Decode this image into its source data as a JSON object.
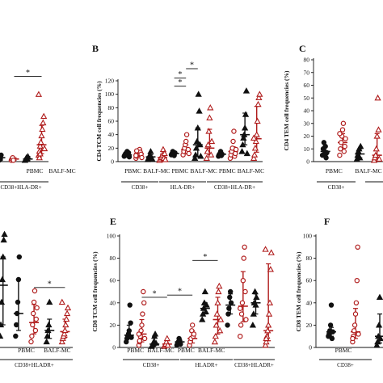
{
  "colors": {
    "black": "#111111",
    "red": "#b01c1c"
  },
  "chart_data": [
    {
      "id": "A",
      "letter": "",
      "type": "scatter",
      "ylabel": "",
      "ylim": [
        0,
        100
      ],
      "yticks": [],
      "sub_labels": [
        "",
        "PBMC",
        "BALF-MC"
      ],
      "group_labels": [
        "CD38+HLA-DR+"
      ],
      "columns": [
        {
          "color": "black",
          "marker": "circle",
          "filled": true,
          "values": [
            2,
            3,
            1,
            4,
            2,
            5
          ],
          "median": 3,
          "q1": 1,
          "q3": 5
        },
        {
          "color": "red",
          "marker": "circle",
          "filled": false,
          "values": [
            1,
            2,
            3,
            1
          ],
          "median": 2,
          "q1": 1,
          "q3": 3
        },
        {
          "color": "black",
          "marker": "triangle",
          "filled": true,
          "values": [
            1,
            2,
            3,
            2,
            4
          ],
          "median": 2,
          "q1": 1,
          "q3": 4
        },
        {
          "color": "red",
          "marker": "triangle",
          "filled": false,
          "values": [
            5,
            8,
            12,
            15,
            20,
            25,
            30,
            35,
            10,
            52,
            3,
            6
          ],
          "median": 13,
          "q1": 6,
          "q3": 28
        }
      ],
      "significance": [
        {
          "from": 1,
          "to": 3,
          "y": 66,
          "label": "*"
        }
      ]
    },
    {
      "id": "B",
      "letter": "B",
      "type": "scatter",
      "ylabel": "CD4 TCM cell frequencies (%)",
      "ylim": [
        0,
        120
      ],
      "yticks": [
        0,
        20,
        40,
        60,
        80,
        100,
        120
      ],
      "sub_labels": [
        "PBMC",
        "BALF-MC",
        "PBMC",
        "BALF-MC",
        "PBMC",
        "BALF-MC"
      ],
      "group_labels": [
        "CD38+",
        "HLA-DR+",
        "CD38+HLA-DR+"
      ],
      "columns": [
        {
          "color": "black",
          "marker": "circle",
          "filled": true,
          "values": [
            8,
            10,
            12,
            11,
            15,
            9,
            13,
            7
          ],
          "median": 10,
          "q1": 8,
          "q3": 13
        },
        {
          "color": "red",
          "marker": "circle",
          "filled": false,
          "values": [
            5,
            8,
            10,
            12,
            15,
            18,
            14,
            11,
            6,
            9,
            16
          ],
          "median": 12,
          "q1": 8,
          "q3": 15
        },
        {
          "color": "black",
          "marker": "triangle",
          "filled": true,
          "values": [
            3,
            5,
            8,
            10,
            15,
            6,
            4
          ],
          "median": 7,
          "q1": 4,
          "q3": 10
        },
        {
          "color": "red",
          "marker": "triangle",
          "filled": false,
          "values": [
            2,
            4,
            6,
            8,
            10,
            18,
            5,
            12,
            3
          ],
          "median": 6,
          "q1": 3,
          "q3": 11
        },
        {
          "color": "black",
          "marker": "circle",
          "filled": true,
          "values": [
            10,
            12,
            15,
            14,
            9,
            13
          ],
          "median": 12,
          "q1": 10,
          "q3": 14
        },
        {
          "color": "red",
          "marker": "circle",
          "filled": false,
          "values": [
            10,
            15,
            20,
            25,
            30,
            40,
            14,
            18,
            12
          ],
          "median": 18,
          "q1": 13,
          "q3": 25
        },
        {
          "color": "black",
          "marker": "triangle",
          "filled": true,
          "values": [
            5,
            10,
            20,
            30,
            50,
            100,
            75,
            25,
            8
          ],
          "median": 25,
          "q1": 8,
          "q3": 50
        },
        {
          "color": "red",
          "marker": "triangle",
          "filled": false,
          "values": [
            5,
            15,
            25,
            45,
            65,
            80,
            10,
            30
          ],
          "median": 20,
          "q1": 10,
          "q3": 48
        },
        {
          "color": "black",
          "marker": "circle",
          "filled": true,
          "values": [
            8,
            10,
            12,
            15,
            9,
            11
          ],
          "median": 11,
          "q1": 9,
          "q3": 12
        },
        {
          "color": "red",
          "marker": "circle",
          "filled": false,
          "values": [
            5,
            10,
            15,
            20,
            30,
            45,
            8,
            12,
            18
          ],
          "median": 15,
          "q1": 10,
          "q3": 22
        },
        {
          "color": "black",
          "marker": "triangle",
          "filled": true,
          "values": [
            15,
            25,
            35,
            40,
            50,
            70,
            105,
            12
          ],
          "median": 40,
          "q1": 25,
          "q3": 72
        },
        {
          "color": "red",
          "marker": "triangle",
          "filled": false,
          "values": [
            5,
            10,
            20,
            30,
            40,
            60,
            85,
            95,
            100,
            35
          ],
          "median": 34,
          "q1": 14,
          "q3": 82
        }
      ],
      "significance": [
        {
          "from": 4,
          "to": 5,
          "y": 112,
          "label": "*"
        },
        {
          "from": 4,
          "to": 5,
          "y": 124,
          "label": "*"
        },
        {
          "from": 5,
          "to": 6,
          "y": 138,
          "label": "*"
        }
      ]
    },
    {
      "id": "C",
      "letter": "C",
      "type": "scatter",
      "ylabel": "CD4 TEM cell frequencies (%)",
      "ylim": [
        0,
        80
      ],
      "yticks": [
        0,
        10,
        20,
        30,
        40,
        50,
        60,
        70,
        80
      ],
      "sub_labels": [
        "PBMC",
        "BALF-MC",
        "",
        ""
      ],
      "group_labels": [
        "CD38+",
        "HL"
      ],
      "columns": [
        {
          "color": "black",
          "marker": "circle",
          "filled": true,
          "values": [
            5,
            10,
            15,
            8,
            12,
            3,
            7
          ],
          "median": 8,
          "q1": 5,
          "q3": 12
        },
        {
          "color": "red",
          "marker": "circle",
          "filled": false,
          "values": [
            5,
            10,
            15,
            20,
            25,
            30,
            8,
            12,
            18,
            22
          ],
          "median": 15,
          "q1": 9,
          "q3": 22
        },
        {
          "color": "black",
          "marker": "triangle",
          "filled": true,
          "values": [
            2,
            5,
            8,
            10,
            3,
            12
          ],
          "median": 6,
          "q1": 3,
          "q3": 10
        },
        {
          "color": "red",
          "marker": "triangle",
          "filled": false,
          "values": [
            1,
            3,
            5,
            10,
            20,
            50,
            25,
            2
          ],
          "median": 5,
          "q1": 2,
          "q3": 22
        },
        {
          "color": "black",
          "marker": "circle",
          "filled": true,
          "values": [
            5,
            8,
            10,
            12,
            15,
            7
          ],
          "median": 9,
          "q1": 7,
          "q3": 12
        },
        {
          "color": "red",
          "marker": "circle",
          "filled": false,
          "values": [
            8,
            12,
            15,
            20,
            40,
            60,
            70,
            10
          ],
          "median": 15,
          "q1": 11,
          "q3": 45
        }
      ],
      "significance": [
        {
          "from": 4,
          "to": 5,
          "y": 76,
          "label": "*"
        }
      ]
    },
    {
      "id": "D",
      "letter": "",
      "type": "scatter",
      "ylabel": "",
      "ylim": [
        0,
        100
      ],
      "yticks": [],
      "sub_labels": [
        "",
        "PBMC",
        "BALF-MC"
      ],
      "group_labels": [
        "CD38+HLADR+"
      ],
      "columns": [
        {
          "color": "red",
          "marker": "circle",
          "filled": false,
          "values": [
            30,
            50,
            60,
            70,
            80,
            90,
            45,
            40
          ],
          "median": 55,
          "q1": 42,
          "q3": 72
        },
        {
          "color": "black",
          "marker": "triangle",
          "filled": true,
          "values": [
            10,
            20,
            40,
            60,
            80,
            95,
            100
          ],
          "median": 55,
          "q1": 20,
          "q3": 80
        },
        {
          "color": "black",
          "marker": "circle",
          "filled": true,
          "values": [
            10,
            20,
            30,
            40,
            60,
            80
          ],
          "median": 30,
          "q1": 15,
          "q3": 60
        },
        {
          "color": "red",
          "marker": "circle",
          "filled": false,
          "values": [
            5,
            10,
            20,
            30,
            40,
            50,
            15,
            25,
            35
          ],
          "median": 22,
          "q1": 12,
          "q3": 38
        },
        {
          "color": "black",
          "marker": "triangle",
          "filled": true,
          "values": [
            5,
            10,
            15,
            20,
            40
          ],
          "median": 15,
          "q1": 8,
          "q3": 25
        },
        {
          "color": "red",
          "marker": "triangle",
          "filled": false,
          "values": [
            5,
            8,
            10,
            12,
            15,
            20,
            25,
            30,
            35,
            40
          ],
          "median": 14,
          "q1": 9,
          "q3": 25
        }
      ],
      "significance": [
        {
          "from": 3,
          "to": 5,
          "y": 53,
          "label": "*"
        }
      ]
    },
    {
      "id": "E",
      "letter": "E",
      "type": "scatter",
      "ylabel": "CD8 TCM cell frequencies (%)",
      "ylim": [
        0,
        100
      ],
      "yticks": [
        0,
        20,
        40,
        60,
        80,
        100
      ],
      "sub_labels": [
        "PBMC",
        "BALF-MC",
        "PBMC",
        "BALF-MC",
        "",
        ""
      ],
      "group_labels": [
        "CD38+",
        "HLADR+",
        "CD38+HLADR+"
      ],
      "columns": [
        {
          "color": "black",
          "marker": "circle",
          "filled": true,
          "values": [
            5,
            8,
            10,
            12,
            15,
            38,
            22,
            9
          ],
          "median": 11,
          "q1": 8,
          "q3": 20
        },
        {
          "color": "red",
          "marker": "circle",
          "filled": false,
          "values": [
            2,
            5,
            10,
            15,
            20,
            30,
            50,
            40,
            8,
            12,
            6
          ],
          "median": 12,
          "q1": 5,
          "q3": 25
        },
        {
          "color": "black",
          "marker": "triangle",
          "filled": true,
          "values": [
            1,
            2,
            3,
            5,
            10,
            12,
            4
          ],
          "median": 3,
          "q1": 2,
          "q3": 10
        },
        {
          "color": "red",
          "marker": "triangle",
          "filled": false,
          "values": [
            1,
            2,
            3,
            5,
            8,
            2
          ],
          "median": 3,
          "q1": 2,
          "q3": 6
        },
        {
          "color": "black",
          "marker": "circle",
          "filled": true,
          "values": [
            2,
            4,
            5,
            8,
            6,
            3
          ],
          "median": 5,
          "q1": 3,
          "q3": 6
        },
        {
          "color": "red",
          "marker": "circle",
          "filled": false,
          "values": [
            2,
            5,
            8,
            15,
            20,
            10,
            12
          ],
          "median": 8,
          "q1": 4,
          "q3": 15
        },
        {
          "color": "black",
          "marker": "triangle",
          "filled": true,
          "values": [
            25,
            30,
            35,
            40,
            50,
            32,
            38
          ],
          "median": 35,
          "q1": 30,
          "q3": 40
        },
        {
          "color": "red",
          "marker": "triangle",
          "filled": false,
          "values": [
            5,
            10,
            20,
            30,
            40,
            50,
            55,
            15,
            25
          ],
          "median": 25,
          "q1": 12,
          "q3": 45
        },
        {
          "color": "black",
          "marker": "circle",
          "filled": true,
          "values": [
            20,
            30,
            35,
            45,
            50,
            40
          ],
          "median": 38,
          "q1": 30,
          "q3": 48
        },
        {
          "color": "red",
          "marker": "circle",
          "filled": false,
          "values": [
            10,
            20,
            30,
            40,
            60,
            80,
            90,
            50,
            25,
            35
          ],
          "median": 37,
          "q1": 23,
          "q3": 68
        },
        {
          "color": "black",
          "marker": "triangle",
          "filled": true,
          "values": [
            20,
            30,
            40,
            50,
            38,
            45
          ],
          "median": 40,
          "q1": 30,
          "q3": 48
        },
        {
          "color": "red",
          "marker": "triangle",
          "filled": false,
          "values": [
            2,
            5,
            10,
            15,
            20,
            30,
            40,
            70,
            85,
            88,
            8
          ],
          "median": 15,
          "q1": 6,
          "q3": 75
        }
      ],
      "significance": [
        {
          "from": 1,
          "to": 3,
          "y": 45,
          "label": "*"
        },
        {
          "from": 3,
          "to": 5,
          "y": 47,
          "label": "*"
        },
        {
          "from": 5,
          "to": 7,
          "y": 78,
          "label": "*"
        }
      ]
    },
    {
      "id": "F",
      "letter": "F",
      "type": "scatter",
      "ylabel": "CD8 TEM cell frequencies (%)",
      "ylim": [
        0,
        100
      ],
      "yticks": [
        0,
        20,
        40,
        60,
        80,
        100
      ],
      "sub_labels": [
        "PBMC",
        "BALF-",
        ""
      ],
      "group_labels": [
        "CD38+"
      ],
      "columns": [
        {
          "color": "black",
          "marker": "circle",
          "filled": true,
          "values": [
            10,
            12,
            15,
            20,
            38,
            8,
            14
          ],
          "median": 14,
          "q1": 10,
          "q3": 18
        },
        {
          "color": "red",
          "marker": "circle",
          "filled": false,
          "values": [
            5,
            10,
            15,
            20,
            30,
            40,
            60,
            90,
            12,
            8
          ],
          "median": 14,
          "q1": 8,
          "q3": 35
        },
        {
          "color": "black",
          "marker": "triangle",
          "filled": true,
          "values": [
            2,
            5,
            10,
            20,
            45,
            8
          ],
          "median": 10,
          "q1": 4,
          "q3": 30
        }
      ],
      "significance": []
    }
  ]
}
